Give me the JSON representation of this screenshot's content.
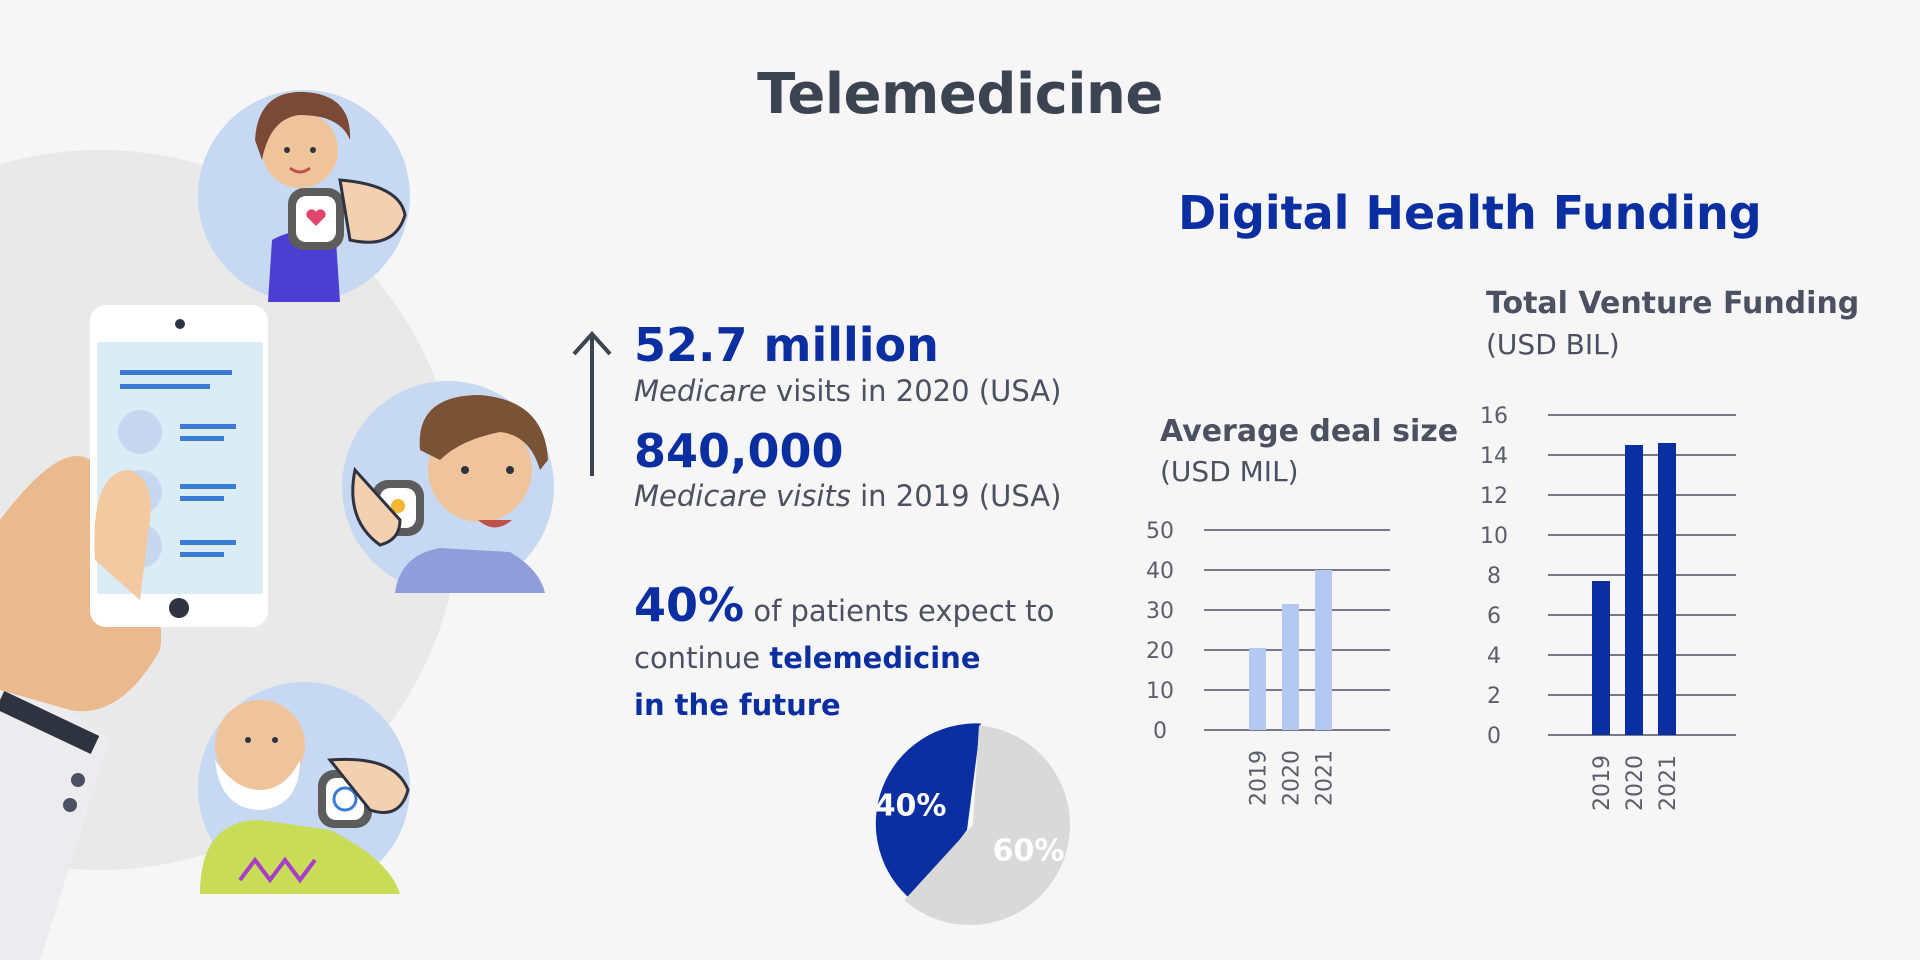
{
  "title": "Telemedicine",
  "funding_title": "Digital Health Funding",
  "stats": {
    "stat1_value": "52.7 million",
    "stat1_italic": "Medicare",
    "stat1_rest": " visits in 2020 (USA)",
    "stat2_value": "840,000",
    "stat2_italic": "Medicare visits",
    "stat2_rest": " in 2019 (USA)",
    "stat3_value": "40%",
    "stat3_text1": " of patients expect to",
    "stat3_text2": "continue ",
    "stat3_bold1": "telemedicine",
    "stat3_bold2": "in the future"
  },
  "colors": {
    "dark_blue": "#0b2fa0",
    "light_blue": "#b4c8f2",
    "pie_grey": "#d9d9d9",
    "text": "#4b5160"
  },
  "chart_data": [
    {
      "type": "pie",
      "slices": [
        {
          "label": "40%",
          "value": 40,
          "color": "#0b2fa0"
        },
        {
          "label": "60%",
          "value": 60,
          "color": "#d9d9d9"
        }
      ]
    },
    {
      "type": "bar",
      "title": "Average deal size",
      "unit": "(USD MIL)",
      "categories": [
        "2019",
        "2020",
        "2021"
      ],
      "values": [
        20.5,
        31.5,
        40
      ],
      "ylim": [
        0,
        50
      ],
      "yticks": [
        0,
        10,
        20,
        30,
        40,
        50
      ],
      "color": "#b4c8f2",
      "grid": true
    },
    {
      "type": "bar",
      "title": "Total Venture Funding",
      "unit": "(USD BIL)",
      "categories": [
        "2019",
        "2020",
        "2021"
      ],
      "values": [
        7.7,
        14.5,
        14.6
      ],
      "ylim": [
        0,
        16
      ],
      "yticks": [
        0,
        2,
        4,
        6,
        8,
        10,
        12,
        14,
        16
      ],
      "color": "#0b2fa0",
      "grid": true
    }
  ]
}
